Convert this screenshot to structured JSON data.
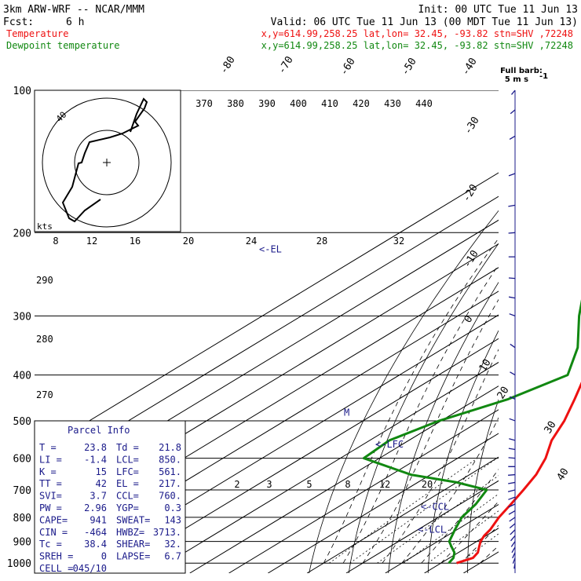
{
  "header": {
    "model": "3km ARW-WRF -- NCAR/MMM",
    "init": "Init: 00 UTC Tue 11 Jun 13",
    "fcst_label": "Fcst:",
    "fcst_value": "6 h",
    "valid": "Valid: 06 UTC Tue 11 Jun 13 (00 MDT Tue 11 Jun 13)",
    "temp_label": "Temperature",
    "temp_loc": "x,y=614.99,258.25   lat,lon= 32.45, -93.82  stn=SHV ,72248",
    "dew_label": "Dewpoint temperature",
    "dew_loc": "x,y=614.99,258.25   lat,lon= 32.45, -93.82  stn=SHV ,72248"
  },
  "colors": {
    "temperature": "#ee1111",
    "dewpoint": "#118811",
    "annotation": "#1a1a8a",
    "grid": "#000000"
  },
  "hodograph": {
    "speed_ring_label": "40",
    "units_label": "kts"
  },
  "wind_barb_key": {
    "title": "Full barb:",
    "value": "5 m s",
    "exponent": "-1"
  },
  "parcel_info": {
    "title": "Parcel Info",
    "rows": [
      [
        "T  =",
        "23.8",
        "Td =",
        "21.8"
      ],
      [
        "LI =",
        "-1.4",
        "LCL=",
        "850."
      ],
      [
        "K  =",
        "15",
        "LFC=",
        "561."
      ],
      [
        "TT =",
        "42",
        "EL =",
        "217."
      ],
      [
        "SVI=",
        "3.7",
        "CCL=",
        "760."
      ],
      [
        "PW =",
        "2.96",
        "YGP=",
        "0.3"
      ],
      [
        "CAPE=",
        "941",
        "SWEAT=",
        "143"
      ],
      [
        "CIN =",
        "-464",
        "HWBZ=",
        "3713."
      ],
      [
        "Tc =",
        "38.4",
        "SHEAR=",
        "32."
      ],
      [
        "SREH =",
        "0",
        "LAPSE=",
        "6.7"
      ],
      [
        "CELL =",
        "045/10",
        "",
        ""
      ]
    ]
  },
  "chart_data": {
    "type": "line",
    "title": "Skew-T log-P sounding",
    "xlabel": "",
    "ylabel": "",
    "pressure_ticks": [
      "100",
      "200",
      "300",
      "400",
      "500",
      "600",
      "700",
      "800",
      "900",
      "1000"
    ],
    "isotherm_labels": [
      "-80",
      "-70",
      "-60",
      "-50",
      "-40",
      "-30",
      "-20",
      "-10",
      "0",
      "10",
      "20",
      "30",
      "40"
    ],
    "theta_labels": [
      "370",
      "380",
      "390",
      "400",
      "410",
      "420",
      "430",
      "440"
    ],
    "mixing_ratio_labels": [
      "8",
      "12",
      "16",
      "20",
      "24",
      "28",
      "32"
    ],
    "low_mixing_ratio_labels": [
      "2",
      "3",
      "5",
      "8",
      "12",
      "20"
    ],
    "left_theta_labels": [
      "290",
      "280",
      "270"
    ],
    "level_markers": [
      "<-EL",
      "<-LFC",
      "<-CCL",
      "<-LCL",
      "M"
    ],
    "series": [
      {
        "name": "Temperature",
        "pressure_hPa": [
          1000,
          975,
          950,
          925,
          900,
          875,
          850,
          800,
          750,
          700,
          650,
          600,
          550,
          500,
          450,
          400,
          350,
          300,
          250,
          220,
          200,
          175,
          150,
          125,
          110,
          100
        ],
        "temp_C": [
          24,
          26,
          25,
          23,
          21,
          19.5,
          18.5,
          15.5,
          13,
          10.2,
          7,
          2.5,
          -3.5,
          -8.5,
          -15,
          -22.5,
          -30.5,
          -40,
          -51.5,
          -58,
          -62.5,
          -67,
          -71,
          -72,
          -71,
          -70
        ]
      },
      {
        "name": "Dewpoint temperature",
        "pressure_hPa": [
          1000,
          975,
          950,
          925,
          900,
          850,
          800,
          750,
          700,
          675,
          650,
          600,
          550,
          500,
          450,
          400,
          350,
          300,
          250,
          200,
          175,
          150,
          125,
          110,
          100
        ],
        "temp_C": [
          22,
          21,
          19,
          16,
          13,
          9.5,
          6,
          4,
          0.8,
          -10,
          -25,
          -44,
          -45,
          -40.5,
          -32,
          -27,
          -36,
          -49,
          -63,
          -69,
          -72,
          -77,
          -83,
          -86,
          -88
        ]
      }
    ],
    "wind_profile": {
      "pressure_hPa": [
        1000,
        975,
        950,
        925,
        900,
        875,
        850,
        825,
        800,
        775,
        750,
        725,
        700,
        675,
        650,
        625,
        600,
        575,
        550,
        500,
        450,
        400,
        350,
        300,
        275,
        250,
        225,
        200,
        175,
        150,
        125,
        110,
        100
      ],
      "speed_ms": [
        6,
        8,
        9,
        10,
        11,
        12,
        13,
        13,
        14,
        15,
        15,
        15,
        15,
        14,
        14,
        13,
        12,
        11,
        10,
        9,
        8,
        8,
        8,
        9,
        10,
        10,
        11,
        12,
        13,
        12,
        10,
        8,
        6
      ],
      "dir_deg": [
        190,
        200,
        205,
        210,
        215,
        220,
        225,
        230,
        235,
        240,
        245,
        250,
        255,
        260,
        265,
        270,
        275,
        280,
        285,
        290,
        295,
        300,
        305,
        290,
        280,
        275,
        270,
        265,
        260,
        250,
        240,
        230,
        220
      ]
    }
  }
}
